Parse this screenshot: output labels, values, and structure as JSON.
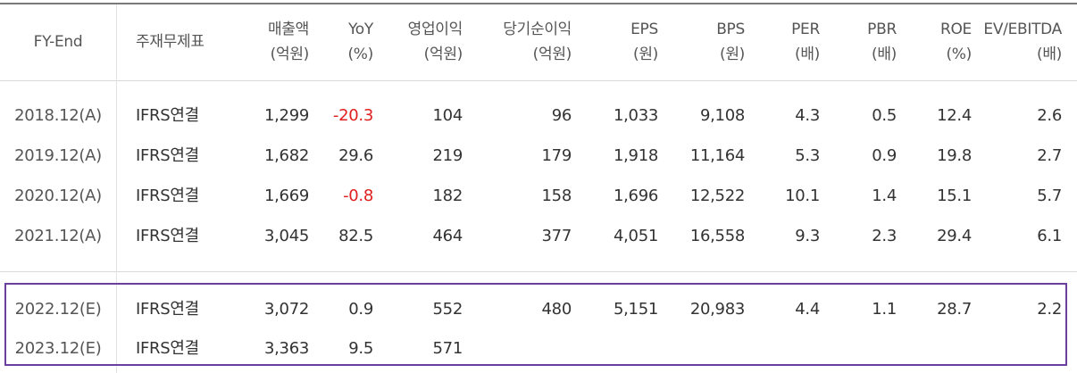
{
  "accent_color": "#6b3fa0",
  "negative_color": "#e02020",
  "headers": [
    {
      "line1": "FY-End",
      "line2": ""
    },
    {
      "line1": "주재무제표",
      "line2": ""
    },
    {
      "line1": "매출액",
      "line2": "(억원)"
    },
    {
      "line1": "YoY",
      "line2": "(%)"
    },
    {
      "line1": "영업이익",
      "line2": "(억원)"
    },
    {
      "line1": "당기순이익",
      "line2": "(억원)"
    },
    {
      "line1": "EPS",
      "line2": "(원)"
    },
    {
      "line1": "BPS",
      "line2": "(원)"
    },
    {
      "line1": "PER",
      "line2": "(배)"
    },
    {
      "line1": "PBR",
      "line2": "(배)"
    },
    {
      "line1": "ROE",
      "line2": "(%)"
    },
    {
      "line1": "EV/EBITDA",
      "line2": "(배)"
    }
  ],
  "rows": [
    {
      "cells": [
        "2018.12(A)",
        "IFRS연결",
        "1,299",
        "-20.3",
        "104",
        "96",
        "1,033",
        "9,108",
        "4.3",
        "0.5",
        "12.4",
        "2.6"
      ],
      "negative": [
        3
      ]
    },
    {
      "cells": [
        "2019.12(A)",
        "IFRS연결",
        "1,682",
        "29.6",
        "219",
        "179",
        "1,918",
        "11,164",
        "5.3",
        "0.9",
        "19.8",
        "2.7"
      ],
      "negative": []
    },
    {
      "cells": [
        "2020.12(A)",
        "IFRS연결",
        "1,669",
        "-0.8",
        "182",
        "158",
        "1,696",
        "12,522",
        "10.1",
        "1.4",
        "15.1",
        "5.7"
      ],
      "negative": [
        3
      ]
    },
    {
      "cells": [
        "2021.12(A)",
        "IFRS연결",
        "3,045",
        "82.5",
        "464",
        "377",
        "4,051",
        "16,558",
        "9.3",
        "2.3",
        "29.4",
        "6.1"
      ],
      "negative": []
    },
    {
      "cells": [
        "2022.12(E)",
        "IFRS연결",
        "3,072",
        "0.9",
        "552",
        "480",
        "5,151",
        "20,983",
        "4.4",
        "1.1",
        "28.7",
        "2.2"
      ],
      "negative": []
    },
    {
      "cells": [
        "2023.12(E)",
        "IFRS연결",
        "3,363",
        "9.5",
        "571",
        "",
        "",
        "",
        "",
        "",
        "",
        ""
      ],
      "negative": []
    }
  ]
}
